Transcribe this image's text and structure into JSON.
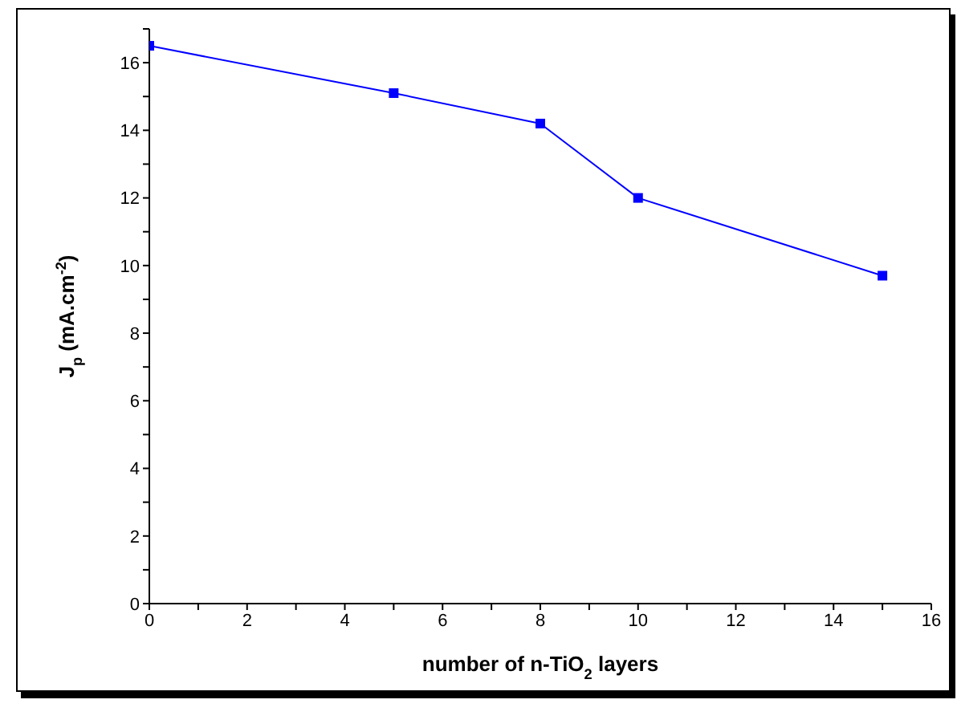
{
  "chart_data": {
    "type": "line",
    "xlabel": "number of n-TiO$_{2}$ layers",
    "ylabel": "J$_{p}$ (mA.cm$^{-2}$)",
    "x": [
      0,
      5,
      8,
      10,
      15
    ],
    "series": [
      {
        "color": "#0000ff",
        "values": [
          16.5,
          15.1,
          14.2,
          12,
          9.7
        ]
      }
    ],
    "xlim": [
      0,
      16
    ],
    "xticks": [
      0,
      {
        "value": 1,
        "label": null
      },
      2,
      {
        "value": 3,
        "label": null
      },
      4,
      {
        "value": 5,
        "label": null
      },
      6,
      {
        "value": 7,
        "label": null
      },
      8,
      {
        "value": 9,
        "label": null
      },
      10,
      {
        "value": 11,
        "label": null
      },
      12,
      {
        "value": 13,
        "label": null
      },
      14,
      {
        "value": 15,
        "label": null
      },
      16
    ],
    "ylim": [
      0,
      17
    ],
    "yticks": [
      0,
      {
        "value": 1,
        "label": null
      },
      2,
      {
        "value": 3,
        "label": null
      },
      4,
      {
        "value": 5,
        "label": null
      },
      6,
      {
        "value": 7,
        "label": null
      },
      8,
      {
        "value": 9,
        "label": null
      },
      10,
      {
        "value": 11,
        "label": null
      },
      12,
      {
        "value": 13,
        "label": null
      },
      14,
      {
        "value": 15,
        "label": null
      },
      16,
      {
        "value": 17,
        "label": null
      }
    ],
    "grid": false,
    "legend": false,
    "marker": "square",
    "line_style": "solid"
  }
}
